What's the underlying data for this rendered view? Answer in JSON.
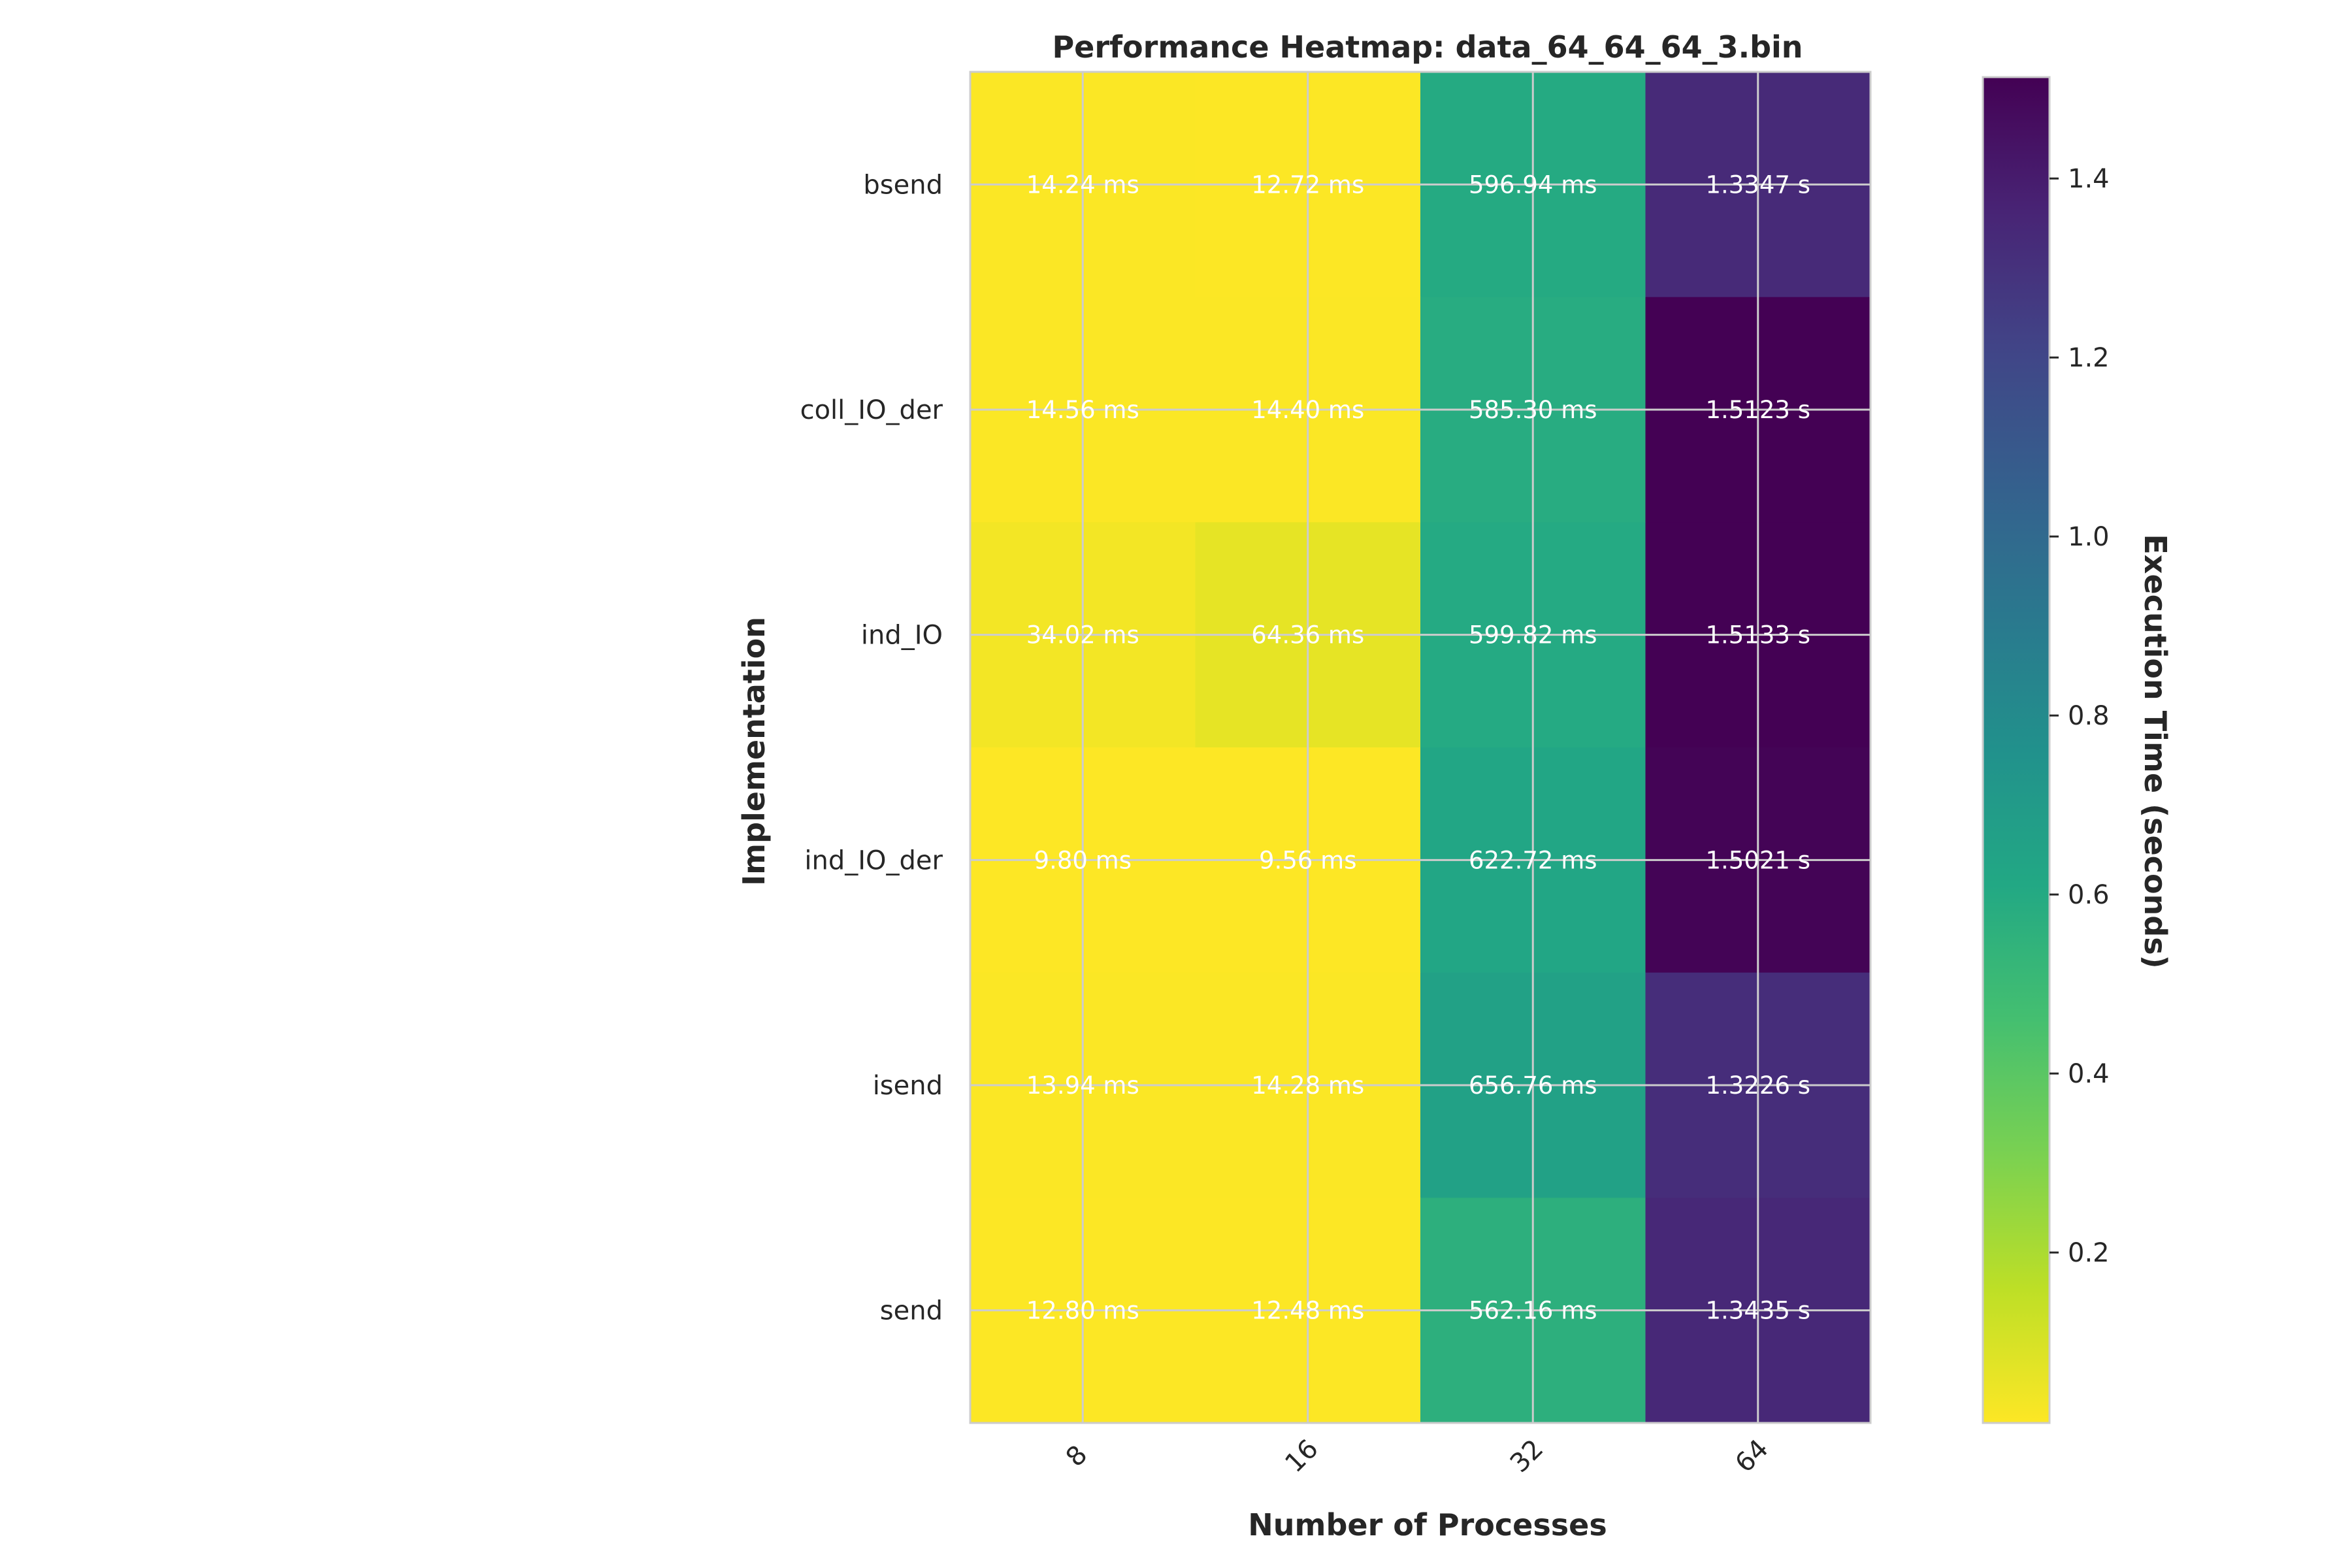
{
  "chart_data": {
    "type": "heatmap",
    "title": "Performance Heatmap: data_64_64_64_3.bin",
    "xlabel": "Number of Processes",
    "ylabel": "Implementation",
    "x_categories": [
      "8",
      "16",
      "32",
      "64"
    ],
    "y_categories": [
      "bsend",
      "coll_IO_der",
      "ind_IO",
      "ind_IO_der",
      "isend",
      "send"
    ],
    "values_seconds": [
      [
        0.01424,
        0.01272,
        0.59694,
        1.3347
      ],
      [
        0.01456,
        0.0144,
        0.5853,
        1.5123
      ],
      [
        0.03402,
        0.06436,
        0.59982,
        1.5133
      ],
      [
        0.0098,
        0.00956,
        0.62272,
        1.5021
      ],
      [
        0.01394,
        0.01428,
        0.65676,
        1.3226
      ],
      [
        0.0128,
        0.01248,
        0.56216,
        1.3435
      ]
    ],
    "cell_labels": [
      [
        "14.24 ms",
        "12.72 ms",
        "596.94 ms",
        "1.3347 s"
      ],
      [
        "14.56 ms",
        "14.40 ms",
        "585.30 ms",
        "1.5123 s"
      ],
      [
        "34.02 ms",
        "64.36 ms",
        "599.82 ms",
        "1.5133 s"
      ],
      [
        "9.80 ms",
        "9.56 ms",
        "622.72 ms",
        "1.5021 s"
      ],
      [
        "13.94 ms",
        "14.28 ms",
        "656.76 ms",
        "1.3226 s"
      ],
      [
        "12.80 ms",
        "12.48 ms",
        "562.16 ms",
        "1.3435 s"
      ]
    ],
    "colormap": "viridis (reversed)",
    "colorbar": {
      "label": "Execution Time (seconds)",
      "range": [
        0.00956,
        1.5133
      ],
      "ticks": [
        0.2,
        0.4,
        0.6,
        0.8,
        1.0,
        1.2,
        1.4
      ],
      "tick_labels": [
        "0.2",
        "0.4",
        "0.6",
        "0.8",
        "1.0",
        "1.2",
        "1.4"
      ]
    },
    "grid": true,
    "colors": {
      "text": "#262626",
      "grid": "#cccccc",
      "cell_text": "#ffffff"
    }
  }
}
